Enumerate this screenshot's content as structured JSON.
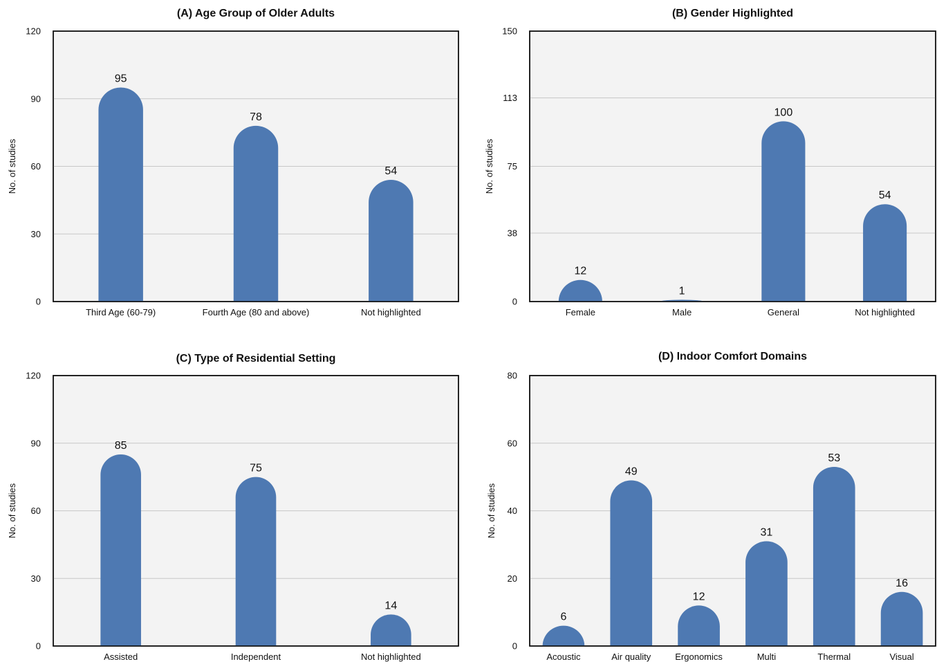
{
  "colors": {
    "bar": "#4e79b2",
    "plot_background": "#f3f3f3",
    "grid": "#c8c8c8",
    "frame": "#111111"
  },
  "chart_data": [
    {
      "type": "bar",
      "title": "(A) Age Group of Older Adults",
      "ylabel": "No. of studies",
      "xlabel": "",
      "categories": [
        "Third Age (60-79)",
        "Fourth Age (80 and above)",
        "Not highlighted"
      ],
      "values": [
        95,
        78,
        54
      ],
      "ylim": [
        0,
        120
      ],
      "yticks": [
        0,
        30,
        60,
        90,
        120
      ],
      "grid": true,
      "data_labels": true
    },
    {
      "type": "bar",
      "title": "(B) Gender Highlighted",
      "ylabel": "No. of studies",
      "xlabel": "",
      "categories": [
        "Female",
        "Male",
        "General",
        "Not highlighted"
      ],
      "values": [
        12,
        1,
        100,
        54
      ],
      "ylim": [
        0,
        150
      ],
      "yticks": [
        0,
        38,
        75,
        113,
        150
      ],
      "grid": true,
      "data_labels": true
    },
    {
      "type": "bar",
      "title": "(C) Type of Residential Setting",
      "ylabel": "No. of studies",
      "xlabel": "",
      "categories": [
        "Assisted",
        "Independent",
        "Not highlighted"
      ],
      "values": [
        85,
        75,
        14
      ],
      "ylim": [
        0,
        120
      ],
      "yticks": [
        0,
        30,
        60,
        90,
        120
      ],
      "grid": true,
      "data_labels": true
    },
    {
      "type": "bar",
      "title": "(D) Indoor Comfort Domains",
      "ylabel": "No. of studies",
      "xlabel": "",
      "categories": [
        "Acoustic",
        "Air quality",
        "Ergonomics",
        "Multi",
        "Thermal",
        "Visual"
      ],
      "values": [
        6,
        49,
        12,
        31,
        53,
        16
      ],
      "ylim": [
        0,
        80
      ],
      "yticks": [
        0,
        20,
        40,
        60,
        80
      ],
      "grid": true,
      "data_labels": true
    }
  ]
}
